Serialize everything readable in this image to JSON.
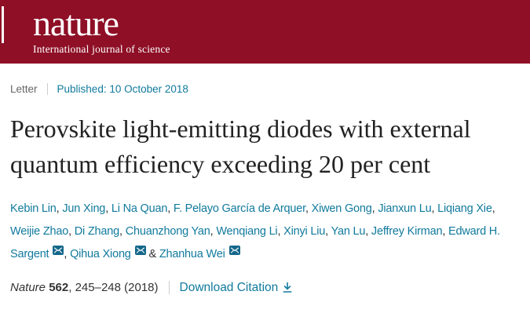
{
  "brand": {
    "logo_text": "nature",
    "tagline": "International journal of science"
  },
  "meta": {
    "article_type": "Letter",
    "published_label": "Published:",
    "published_date": "10 October 2018"
  },
  "article": {
    "title": "Perovskite light-emitting diodes with external quantum efficiency exceeding 20 per cent"
  },
  "authors": {
    "separator": ", ",
    "last_separator": " & ",
    "names": [
      {
        "name": "Kebin Lin"
      },
      {
        "name": "Jun Xing"
      },
      {
        "name": "Li Na Quan"
      },
      {
        "name": "F. Pelayo García de Arquer"
      },
      {
        "name": "Xiwen Gong"
      },
      {
        "name": "Jianxun Lu"
      },
      {
        "name": "Liqiang Xie"
      },
      {
        "name": "Weijie Zhao"
      },
      {
        "name": "Di Zhang"
      },
      {
        "name": "Chuanzhong Yan"
      },
      {
        "name": "Wenqiang Li"
      },
      {
        "name": "Xinyi Liu"
      },
      {
        "name": "Yan Lu"
      },
      {
        "name": "Jeffrey Kirman"
      },
      {
        "name": "Edward H. Sargent",
        "email": true
      },
      {
        "name": "Qihua Xiong",
        "email": true
      },
      {
        "name": "Zhanhua Wei",
        "email": true
      }
    ]
  },
  "citation": {
    "journal": "Nature",
    "volume": "562",
    "suffix": ", 245–248 (2018)",
    "download_label": "Download Citation"
  },
  "colors": {
    "banner": "#8e0f26",
    "link": "#117a9d",
    "envelope": "#14678a"
  }
}
